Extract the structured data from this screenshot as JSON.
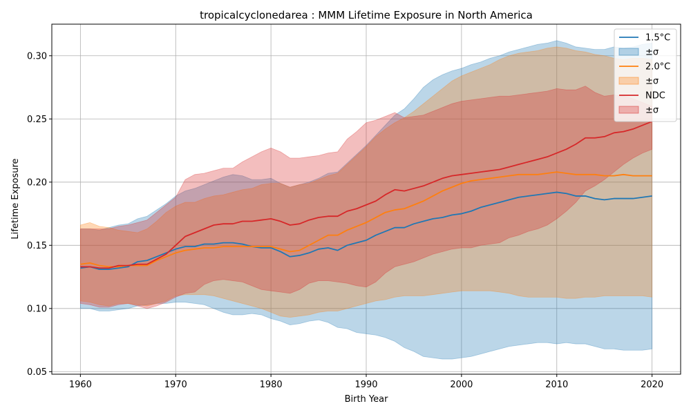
{
  "chart_data": {
    "type": "line",
    "title": "tropicalcyclonedarea : MMM Lifetime Exposure in North America",
    "xlabel": "Birth Year",
    "ylabel": "Lifetime Exposure",
    "xlim": [
      1957,
      2023
    ],
    "ylim": [
      0.048,
      0.325
    ],
    "x_ticks": [
      1960,
      1970,
      1980,
      1990,
      2000,
      2010,
      2020
    ],
    "y_ticks": [
      0.05,
      0.1,
      0.15,
      0.2,
      0.25,
      0.3
    ],
    "grid": true,
    "legend_position": "top-right",
    "x_start": 1960,
    "x_step": 1,
    "series": [
      {
        "name": "1.5°C",
        "band_label": "±σ",
        "color": "#1f77b4",
        "band_alpha": 0.3,
        "values": [
          0.132,
          0.133,
          0.131,
          0.131,
          0.132,
          0.133,
          0.137,
          0.138,
          0.141,
          0.144,
          0.147,
          0.149,
          0.149,
          0.151,
          0.151,
          0.152,
          0.152,
          0.151,
          0.149,
          0.148,
          0.148,
          0.145,
          0.141,
          0.142,
          0.144,
          0.147,
          0.148,
          0.146,
          0.15,
          0.152,
          0.154,
          0.158,
          0.161,
          0.164,
          0.164,
          0.167,
          0.169,
          0.171,
          0.172,
          0.174,
          0.175,
          0.177,
          0.18,
          0.182,
          0.184,
          0.186,
          0.188,
          0.189,
          0.19,
          0.191,
          0.192,
          0.191,
          0.189,
          0.189,
          0.187,
          0.186,
          0.187,
          0.187,
          0.187,
          0.188,
          0.189
        ],
        "upper": [
          0.163,
          0.163,
          0.162,
          0.164,
          0.166,
          0.167,
          0.171,
          0.173,
          0.178,
          0.183,
          0.189,
          0.193,
          0.195,
          0.198,
          0.201,
          0.204,
          0.206,
          0.205,
          0.202,
          0.202,
          0.203,
          0.199,
          0.196,
          0.198,
          0.2,
          0.203,
          0.207,
          0.208,
          0.215,
          0.222,
          0.229,
          0.237,
          0.245,
          0.253,
          0.258,
          0.266,
          0.275,
          0.281,
          0.285,
          0.288,
          0.29,
          0.293,
          0.295,
          0.298,
          0.3,
          0.303,
          0.305,
          0.307,
          0.309,
          0.31,
          0.312,
          0.31,
          0.307,
          0.306,
          0.305,
          0.305,
          0.307,
          0.306,
          0.307,
          0.309,
          0.31
        ],
        "lower": [
          0.1,
          0.1,
          0.098,
          0.098,
          0.099,
          0.1,
          0.102,
          0.103,
          0.104,
          0.104,
          0.105,
          0.105,
          0.104,
          0.103,
          0.1,
          0.097,
          0.095,
          0.095,
          0.096,
          0.095,
          0.092,
          0.09,
          0.087,
          0.088,
          0.09,
          0.091,
          0.089,
          0.085,
          0.084,
          0.081,
          0.08,
          0.079,
          0.077,
          0.074,
          0.069,
          0.066,
          0.062,
          0.061,
          0.06,
          0.06,
          0.061,
          0.062,
          0.064,
          0.066,
          0.068,
          0.07,
          0.071,
          0.072,
          0.073,
          0.073,
          0.072,
          0.073,
          0.072,
          0.072,
          0.07,
          0.068,
          0.068,
          0.067,
          0.067,
          0.067,
          0.068
        ]
      },
      {
        "name": "2.0°C",
        "band_label": "±σ",
        "color": "#ff7f0e",
        "band_alpha": 0.3,
        "values": [
          0.135,
          0.136,
          0.134,
          0.133,
          0.133,
          0.134,
          0.134,
          0.134,
          0.138,
          0.141,
          0.144,
          0.146,
          0.147,
          0.148,
          0.148,
          0.149,
          0.149,
          0.149,
          0.149,
          0.149,
          0.149,
          0.147,
          0.145,
          0.146,
          0.15,
          0.154,
          0.158,
          0.158,
          0.162,
          0.165,
          0.168,
          0.172,
          0.176,
          0.178,
          0.179,
          0.182,
          0.185,
          0.189,
          0.193,
          0.196,
          0.199,
          0.201,
          0.202,
          0.203,
          0.204,
          0.205,
          0.206,
          0.206,
          0.206,
          0.207,
          0.208,
          0.207,
          0.206,
          0.206,
          0.206,
          0.205,
          0.205,
          0.206,
          0.205,
          0.205,
          0.205
        ],
        "upper": [
          0.166,
          0.168,
          0.165,
          0.164,
          0.162,
          0.161,
          0.16,
          0.163,
          0.169,
          0.176,
          0.181,
          0.184,
          0.184,
          0.187,
          0.189,
          0.19,
          0.192,
          0.194,
          0.195,
          0.198,
          0.199,
          0.199,
          0.196,
          0.198,
          0.199,
          0.202,
          0.205,
          0.207,
          0.214,
          0.221,
          0.228,
          0.236,
          0.242,
          0.247,
          0.251,
          0.256,
          0.262,
          0.268,
          0.274,
          0.28,
          0.284,
          0.287,
          0.29,
          0.293,
          0.297,
          0.3,
          0.302,
          0.303,
          0.304,
          0.306,
          0.307,
          0.306,
          0.304,
          0.303,
          0.301,
          0.3,
          0.298,
          0.297,
          0.298,
          0.298,
          0.297
        ],
        "lower": [
          0.106,
          0.105,
          0.103,
          0.102,
          0.104,
          0.104,
          0.103,
          0.102,
          0.104,
          0.106,
          0.11,
          0.111,
          0.111,
          0.111,
          0.11,
          0.108,
          0.106,
          0.104,
          0.102,
          0.1,
          0.097,
          0.094,
          0.093,
          0.094,
          0.095,
          0.097,
          0.098,
          0.098,
          0.1,
          0.102,
          0.104,
          0.106,
          0.107,
          0.109,
          0.11,
          0.11,
          0.11,
          0.111,
          0.112,
          0.113,
          0.114,
          0.114,
          0.114,
          0.114,
          0.113,
          0.112,
          0.11,
          0.109,
          0.109,
          0.109,
          0.109,
          0.108,
          0.108,
          0.109,
          0.109,
          0.11,
          0.11,
          0.11,
          0.11,
          0.11,
          0.109
        ]
      },
      {
        "name": "NDC",
        "band_label": "±σ",
        "color": "#d62728",
        "band_alpha": 0.3,
        "values": [
          0.133,
          0.133,
          0.132,
          0.132,
          0.134,
          0.134,
          0.135,
          0.135,
          0.139,
          0.143,
          0.15,
          0.157,
          0.16,
          0.163,
          0.166,
          0.167,
          0.167,
          0.169,
          0.169,
          0.17,
          0.171,
          0.169,
          0.166,
          0.167,
          0.17,
          0.172,
          0.173,
          0.173,
          0.177,
          0.179,
          0.182,
          0.185,
          0.19,
          0.194,
          0.193,
          0.195,
          0.197,
          0.2,
          0.203,
          0.205,
          0.206,
          0.207,
          0.208,
          0.209,
          0.21,
          0.212,
          0.214,
          0.216,
          0.218,
          0.22,
          0.223,
          0.226,
          0.23,
          0.235,
          0.235,
          0.236,
          0.239,
          0.24,
          0.242,
          0.245,
          0.248
        ],
        "upper": [
          0.163,
          0.163,
          0.163,
          0.163,
          0.165,
          0.166,
          0.168,
          0.17,
          0.176,
          0.182,
          0.188,
          0.202,
          0.206,
          0.207,
          0.209,
          0.211,
          0.211,
          0.216,
          0.22,
          0.224,
          0.227,
          0.224,
          0.219,
          0.219,
          0.22,
          0.221,
          0.223,
          0.224,
          0.234,
          0.24,
          0.247,
          0.249,
          0.252,
          0.255,
          0.251,
          0.252,
          0.253,
          0.256,
          0.259,
          0.262,
          0.264,
          0.265,
          0.266,
          0.267,
          0.268,
          0.268,
          0.269,
          0.27,
          0.271,
          0.272,
          0.274,
          0.273,
          0.273,
          0.276,
          0.271,
          0.268,
          0.269,
          0.268,
          0.266,
          0.263,
          0.26
        ],
        "lower": [
          0.104,
          0.103,
          0.101,
          0.101,
          0.103,
          0.104,
          0.102,
          0.1,
          0.102,
          0.105,
          0.109,
          0.112,
          0.113,
          0.119,
          0.122,
          0.123,
          0.122,
          0.121,
          0.118,
          0.115,
          0.114,
          0.113,
          0.112,
          0.115,
          0.12,
          0.122,
          0.122,
          0.121,
          0.12,
          0.118,
          0.117,
          0.121,
          0.128,
          0.133,
          0.135,
          0.137,
          0.14,
          0.143,
          0.145,
          0.147,
          0.148,
          0.148,
          0.15,
          0.151,
          0.152,
          0.156,
          0.158,
          0.161,
          0.163,
          0.166,
          0.171,
          0.177,
          0.184,
          0.193,
          0.197,
          0.202,
          0.208,
          0.214,
          0.219,
          0.223,
          0.226
        ]
      }
    ]
  }
}
